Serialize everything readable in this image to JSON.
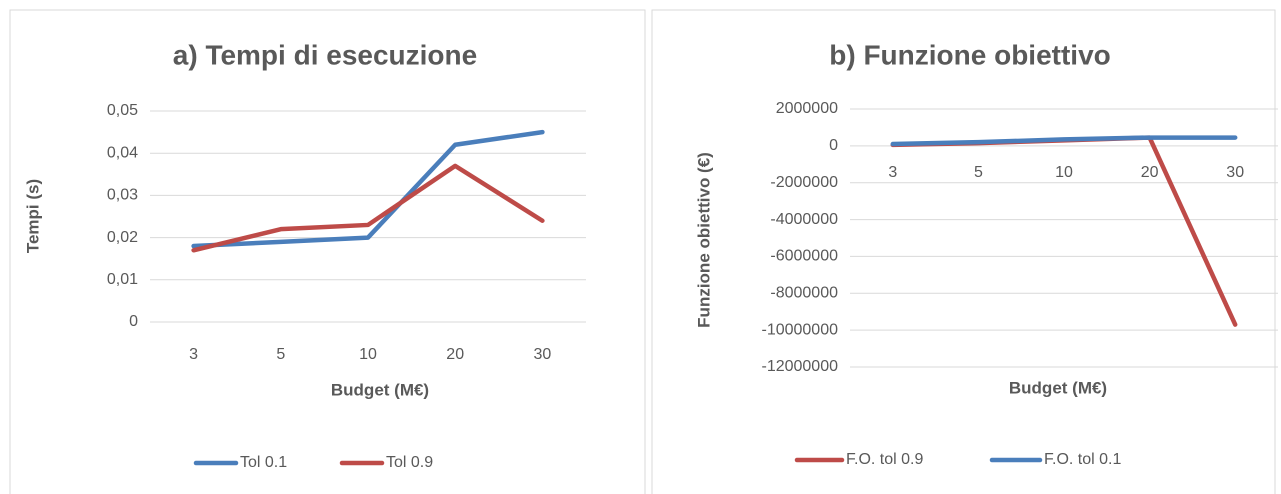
{
  "chart_data": [
    {
      "type": "line",
      "title": "a) Tempi di esecuzione",
      "x_label": "Budget (M€)",
      "y_label": "Tempi (s)",
      "categories": [
        "3",
        "5",
        "10",
        "20",
        "30"
      ],
      "series": [
        {
          "name": "Tol 0.1",
          "color": "#4a7ebb",
          "values": [
            0.018,
            0.019,
            0.02,
            0.042,
            0.045
          ]
        },
        {
          "name": "Tol 0.9",
          "color": "#be4b48",
          "values": [
            0.017,
            0.022,
            0.023,
            0.037,
            0.024
          ]
        }
      ],
      "ylim": [
        0,
        0.05
      ],
      "yticks": [
        0,
        {
          "value": 0.01,
          "label": "0,01"
        },
        {
          "value": 0.02,
          "label": "0,02"
        },
        {
          "value": 0.03,
          "label": "0,03"
        },
        {
          "value": 0.04,
          "label": "0,04"
        },
        {
          "value": 0.05,
          "label": "0,05"
        }
      ],
      "grid": true,
      "legend": "bottom"
    },
    {
      "type": "line",
      "title": "b) Funzione obiettivo",
      "x_label": "Budget (M€)",
      "y_label": "Funzione obiettivo (€)",
      "categories": [
        "3",
        "5",
        "10",
        "20",
        "30"
      ],
      "series": [
        {
          "name": "F.O. tol 0.9",
          "color": "#be4b48",
          "values": [
            50000,
            150000,
            300000,
            450000,
            -9700000
          ]
        },
        {
          "name": "F.O. tol 0.1",
          "color": "#4a7ebb",
          "values": [
            100000,
            200000,
            350000,
            450000,
            450000
          ]
        }
      ],
      "ylim": [
        -12000000,
        2000000
      ],
      "yticks": [
        -12000000,
        -10000000,
        -8000000,
        -6000000,
        -4000000,
        -2000000,
        0,
        2000000
      ],
      "grid": true,
      "legend": "bottom"
    }
  ]
}
